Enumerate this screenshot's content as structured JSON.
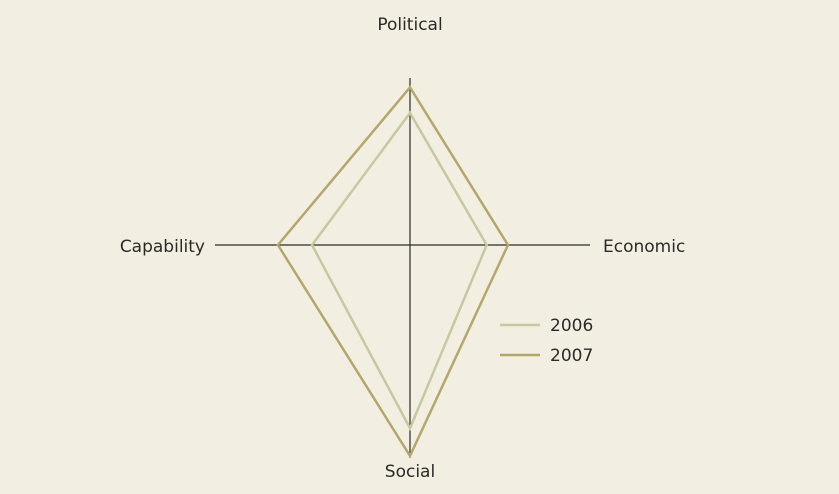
{
  "chart_data": {
    "type": "radar",
    "categories": [
      "Political",
      "Economic",
      "Social",
      "Capability"
    ],
    "rlim": [
      0,
      100
    ],
    "series": [
      {
        "name": "2006",
        "color": "#c8c8a0",
        "values": [
          62,
          36,
          86,
          46
        ]
      },
      {
        "name": "2007",
        "color": "#b5a66c",
        "values": [
          74,
          46,
          99,
          62
        ]
      }
    ],
    "legend": "lower right"
  }
}
